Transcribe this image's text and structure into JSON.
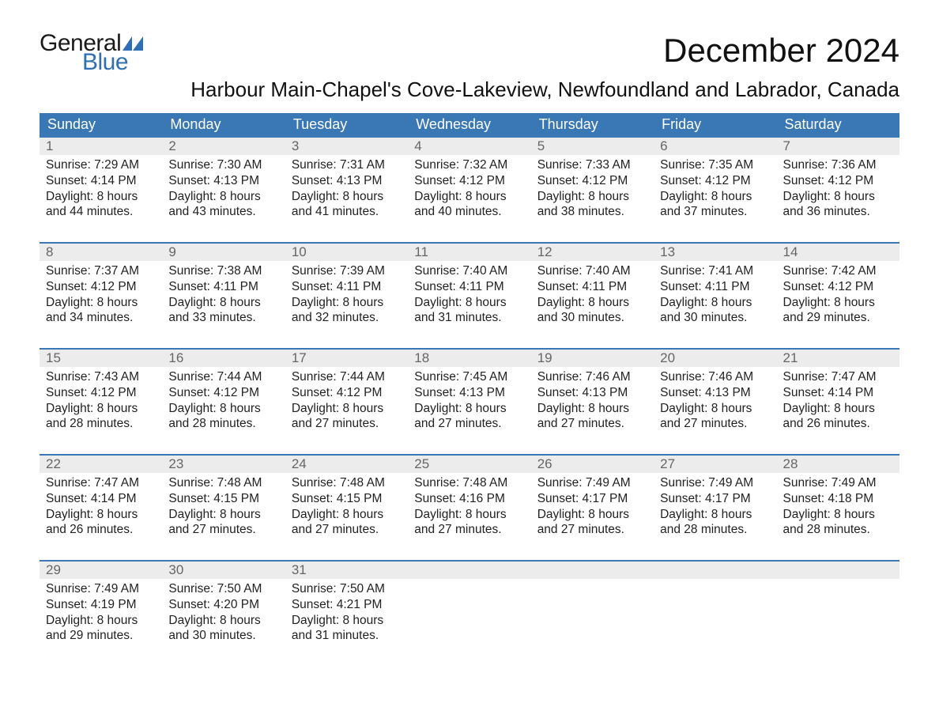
{
  "logo": {
    "word1": "General",
    "word2": "Blue",
    "flag_color": "#2f6fb3"
  },
  "title": "December 2024",
  "location": "Harbour Main-Chapel's Cove-Lakeview, Newfoundland and Labrador, Canada",
  "colors": {
    "header_bg": "#3a78b5",
    "header_text": "#ffffff",
    "daynum_bg": "#ececec",
    "daynum_text": "#666666",
    "row_border": "#3a78b5",
    "body_text": "#222222",
    "page_bg": "#ffffff"
  },
  "weekdays": [
    "Sunday",
    "Monday",
    "Tuesday",
    "Wednesday",
    "Thursday",
    "Friday",
    "Saturday"
  ],
  "weeks": [
    [
      {
        "n": "1",
        "sr": "Sunrise: 7:29 AM",
        "ss": "Sunset: 4:14 PM",
        "d1": "Daylight: 8 hours",
        "d2": "and 44 minutes."
      },
      {
        "n": "2",
        "sr": "Sunrise: 7:30 AM",
        "ss": "Sunset: 4:13 PM",
        "d1": "Daylight: 8 hours",
        "d2": "and 43 minutes."
      },
      {
        "n": "3",
        "sr": "Sunrise: 7:31 AM",
        "ss": "Sunset: 4:13 PM",
        "d1": "Daylight: 8 hours",
        "d2": "and 41 minutes."
      },
      {
        "n": "4",
        "sr": "Sunrise: 7:32 AM",
        "ss": "Sunset: 4:12 PM",
        "d1": "Daylight: 8 hours",
        "d2": "and 40 minutes."
      },
      {
        "n": "5",
        "sr": "Sunrise: 7:33 AM",
        "ss": "Sunset: 4:12 PM",
        "d1": "Daylight: 8 hours",
        "d2": "and 38 minutes."
      },
      {
        "n": "6",
        "sr": "Sunrise: 7:35 AM",
        "ss": "Sunset: 4:12 PM",
        "d1": "Daylight: 8 hours",
        "d2": "and 37 minutes."
      },
      {
        "n": "7",
        "sr": "Sunrise: 7:36 AM",
        "ss": "Sunset: 4:12 PM",
        "d1": "Daylight: 8 hours",
        "d2": "and 36 minutes."
      }
    ],
    [
      {
        "n": "8",
        "sr": "Sunrise: 7:37 AM",
        "ss": "Sunset: 4:12 PM",
        "d1": "Daylight: 8 hours",
        "d2": "and 34 minutes."
      },
      {
        "n": "9",
        "sr": "Sunrise: 7:38 AM",
        "ss": "Sunset: 4:11 PM",
        "d1": "Daylight: 8 hours",
        "d2": "and 33 minutes."
      },
      {
        "n": "10",
        "sr": "Sunrise: 7:39 AM",
        "ss": "Sunset: 4:11 PM",
        "d1": "Daylight: 8 hours",
        "d2": "and 32 minutes."
      },
      {
        "n": "11",
        "sr": "Sunrise: 7:40 AM",
        "ss": "Sunset: 4:11 PM",
        "d1": "Daylight: 8 hours",
        "d2": "and 31 minutes."
      },
      {
        "n": "12",
        "sr": "Sunrise: 7:40 AM",
        "ss": "Sunset: 4:11 PM",
        "d1": "Daylight: 8 hours",
        "d2": "and 30 minutes."
      },
      {
        "n": "13",
        "sr": "Sunrise: 7:41 AM",
        "ss": "Sunset: 4:11 PM",
        "d1": "Daylight: 8 hours",
        "d2": "and 30 minutes."
      },
      {
        "n": "14",
        "sr": "Sunrise: 7:42 AM",
        "ss": "Sunset: 4:12 PM",
        "d1": "Daylight: 8 hours",
        "d2": "and 29 minutes."
      }
    ],
    [
      {
        "n": "15",
        "sr": "Sunrise: 7:43 AM",
        "ss": "Sunset: 4:12 PM",
        "d1": "Daylight: 8 hours",
        "d2": "and 28 minutes."
      },
      {
        "n": "16",
        "sr": "Sunrise: 7:44 AM",
        "ss": "Sunset: 4:12 PM",
        "d1": "Daylight: 8 hours",
        "d2": "and 28 minutes."
      },
      {
        "n": "17",
        "sr": "Sunrise: 7:44 AM",
        "ss": "Sunset: 4:12 PM",
        "d1": "Daylight: 8 hours",
        "d2": "and 27 minutes."
      },
      {
        "n": "18",
        "sr": "Sunrise: 7:45 AM",
        "ss": "Sunset: 4:13 PM",
        "d1": "Daylight: 8 hours",
        "d2": "and 27 minutes."
      },
      {
        "n": "19",
        "sr": "Sunrise: 7:46 AM",
        "ss": "Sunset: 4:13 PM",
        "d1": "Daylight: 8 hours",
        "d2": "and 27 minutes."
      },
      {
        "n": "20",
        "sr": "Sunrise: 7:46 AM",
        "ss": "Sunset: 4:13 PM",
        "d1": "Daylight: 8 hours",
        "d2": "and 27 minutes."
      },
      {
        "n": "21",
        "sr": "Sunrise: 7:47 AM",
        "ss": "Sunset: 4:14 PM",
        "d1": "Daylight: 8 hours",
        "d2": "and 26 minutes."
      }
    ],
    [
      {
        "n": "22",
        "sr": "Sunrise: 7:47 AM",
        "ss": "Sunset: 4:14 PM",
        "d1": "Daylight: 8 hours",
        "d2": "and 26 minutes."
      },
      {
        "n": "23",
        "sr": "Sunrise: 7:48 AM",
        "ss": "Sunset: 4:15 PM",
        "d1": "Daylight: 8 hours",
        "d2": "and 27 minutes."
      },
      {
        "n": "24",
        "sr": "Sunrise: 7:48 AM",
        "ss": "Sunset: 4:15 PM",
        "d1": "Daylight: 8 hours",
        "d2": "and 27 minutes."
      },
      {
        "n": "25",
        "sr": "Sunrise: 7:48 AM",
        "ss": "Sunset: 4:16 PM",
        "d1": "Daylight: 8 hours",
        "d2": "and 27 minutes."
      },
      {
        "n": "26",
        "sr": "Sunrise: 7:49 AM",
        "ss": "Sunset: 4:17 PM",
        "d1": "Daylight: 8 hours",
        "d2": "and 27 minutes."
      },
      {
        "n": "27",
        "sr": "Sunrise: 7:49 AM",
        "ss": "Sunset: 4:17 PM",
        "d1": "Daylight: 8 hours",
        "d2": "and 28 minutes."
      },
      {
        "n": "28",
        "sr": "Sunrise: 7:49 AM",
        "ss": "Sunset: 4:18 PM",
        "d1": "Daylight: 8 hours",
        "d2": "and 28 minutes."
      }
    ],
    [
      {
        "n": "29",
        "sr": "Sunrise: 7:49 AM",
        "ss": "Sunset: 4:19 PM",
        "d1": "Daylight: 8 hours",
        "d2": "and 29 minutes."
      },
      {
        "n": "30",
        "sr": "Sunrise: 7:50 AM",
        "ss": "Sunset: 4:20 PM",
        "d1": "Daylight: 8 hours",
        "d2": "and 30 minutes."
      },
      {
        "n": "31",
        "sr": "Sunrise: 7:50 AM",
        "ss": "Sunset: 4:21 PM",
        "d1": "Daylight: 8 hours",
        "d2": "and 31 minutes."
      },
      {
        "n": "",
        "sr": "",
        "ss": "",
        "d1": "",
        "d2": ""
      },
      {
        "n": "",
        "sr": "",
        "ss": "",
        "d1": "",
        "d2": ""
      },
      {
        "n": "",
        "sr": "",
        "ss": "",
        "d1": "",
        "d2": ""
      },
      {
        "n": "",
        "sr": "",
        "ss": "",
        "d1": "",
        "d2": ""
      }
    ]
  ]
}
